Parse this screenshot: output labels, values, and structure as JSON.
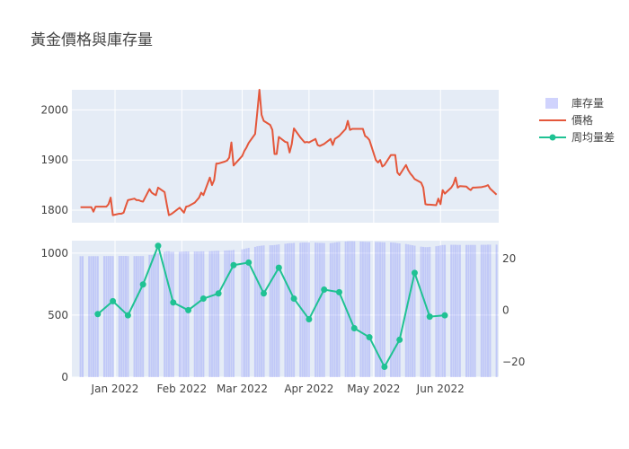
{
  "chart_data": {
    "type": "line",
    "title": "黃金價格與庫存量",
    "legend": {
      "placement": "top-right",
      "entries": [
        {
          "key": "inventory",
          "label": "庫存量"
        },
        {
          "key": "price",
          "label": "價格"
        },
        {
          "key": "diff",
          "label": "周均量差"
        }
      ]
    },
    "colors": {
      "price": "#e4573b",
      "inventory": "#636efa",
      "diff": "#1fc293",
      "panel_bg": "#e5ecf6"
    },
    "grid": true,
    "x_axis": {
      "range": [
        "2021-12-12",
        "2022-06-28"
      ],
      "tick_dates": [
        "2022-01-01",
        "2022-02-01",
        "2022-03-01",
        "2022-04-01",
        "2022-05-01",
        "2022-06-01"
      ],
      "tick_labels": [
        "Jan 2022",
        "Feb 2022",
        "Mar 2022",
        "Apr 2022",
        "May 2022",
        "Jun 2022"
      ]
    },
    "price_axis": {
      "range": [
        1775,
        2040
      ],
      "ticks": [
        1800,
        1900,
        2000
      ]
    },
    "inventory_axis": {
      "range": [
        0,
        1100
      ],
      "ticks": [
        0,
        500,
        1000
      ]
    },
    "diff_axis": {
      "range": [
        -26,
        27
      ],
      "ticks": [
        -20,
        0,
        20
      ],
      "tick_labels": [
        "−20",
        "0",
        "20"
      ]
    },
    "price": {
      "name": "價格",
      "points": [
        [
          "2021-12-16",
          1806
        ],
        [
          "2021-12-17",
          1806
        ],
        [
          "2021-12-20",
          1806
        ],
        [
          "2021-12-21",
          1806
        ],
        [
          "2021-12-22",
          1797
        ],
        [
          "2021-12-23",
          1807
        ],
        [
          "2021-12-24",
          1807
        ],
        [
          "2021-12-27",
          1807
        ],
        [
          "2021-12-28",
          1807
        ],
        [
          "2021-12-29",
          1812
        ],
        [
          "2021-12-30",
          1825
        ],
        [
          "2021-12-31",
          1790
        ],
        [
          "2022-01-03",
          1793
        ],
        [
          "2022-01-04",
          1793
        ],
        [
          "2022-01-05",
          1795
        ],
        [
          "2022-01-06",
          1808
        ],
        [
          "2022-01-07",
          1820
        ],
        [
          "2022-01-10",
          1823
        ],
        [
          "2022-01-11",
          1820
        ],
        [
          "2022-01-12",
          1820
        ],
        [
          "2022-01-13",
          1818
        ],
        [
          "2022-01-14",
          1817
        ],
        [
          "2022-01-17",
          1842
        ],
        [
          "2022-01-18",
          1835
        ],
        [
          "2022-01-19",
          1832
        ],
        [
          "2022-01-20",
          1830
        ],
        [
          "2022-01-21",
          1845
        ],
        [
          "2022-01-24",
          1836
        ],
        [
          "2022-01-25",
          1812
        ],
        [
          "2022-01-26",
          1790
        ],
        [
          "2022-01-27",
          1792
        ],
        [
          "2022-01-28",
          1795
        ],
        [
          "2022-01-31",
          1805
        ],
        [
          "2022-02-01",
          1800
        ],
        [
          "2022-02-02",
          1795
        ],
        [
          "2022-02-03",
          1807
        ],
        [
          "2022-02-04",
          1808
        ],
        [
          "2022-02-07",
          1815
        ],
        [
          "2022-02-08",
          1820
        ],
        [
          "2022-02-09",
          1825
        ],
        [
          "2022-02-10",
          1835
        ],
        [
          "2022-02-11",
          1830
        ],
        [
          "2022-02-14",
          1865
        ],
        [
          "2022-02-15",
          1850
        ],
        [
          "2022-02-16",
          1860
        ],
        [
          "2022-02-17",
          1893
        ],
        [
          "2022-02-18",
          1893
        ],
        [
          "2022-02-21",
          1897
        ],
        [
          "2022-02-22",
          1899
        ],
        [
          "2022-02-23",
          1905
        ],
        [
          "2022-02-24",
          1935
        ],
        [
          "2022-02-25",
          1889
        ],
        [
          "2022-03-01",
          1908
        ],
        [
          "2022-03-02",
          1918
        ],
        [
          "2022-03-03",
          1925
        ],
        [
          "2022-03-04",
          1934
        ],
        [
          "2022-03-07",
          1952
        ],
        [
          "2022-03-08",
          1995
        ],
        [
          "2022-03-09",
          2040
        ],
        [
          "2022-03-10",
          1990
        ],
        [
          "2022-03-11",
          1978
        ],
        [
          "2022-03-14",
          1970
        ],
        [
          "2022-03-15",
          1960
        ],
        [
          "2022-03-16",
          1912
        ],
        [
          "2022-03-17",
          1912
        ],
        [
          "2022-03-18",
          1946
        ],
        [
          "2022-03-21",
          1936
        ],
        [
          "2022-03-22",
          1935
        ],
        [
          "2022-03-23",
          1915
        ],
        [
          "2022-03-24",
          1932
        ],
        [
          "2022-03-25",
          1963
        ],
        [
          "2022-03-28",
          1945
        ],
        [
          "2022-03-29",
          1940
        ],
        [
          "2022-03-30",
          1935
        ],
        [
          "2022-03-31",
          1936
        ],
        [
          "2022-04-01",
          1935
        ],
        [
          "2022-04-04",
          1942
        ],
        [
          "2022-04-05",
          1930
        ],
        [
          "2022-04-06",
          1928
        ],
        [
          "2022-04-07",
          1930
        ],
        [
          "2022-04-08",
          1932
        ],
        [
          "2022-04-11",
          1942
        ],
        [
          "2022-04-12",
          1930
        ],
        [
          "2022-04-13",
          1942
        ],
        [
          "2022-04-14",
          1945
        ],
        [
          "2022-04-15",
          1948
        ],
        [
          "2022-04-18",
          1962
        ],
        [
          "2022-04-19",
          1978
        ],
        [
          "2022-04-20",
          1960
        ],
        [
          "2022-04-21",
          1962
        ],
        [
          "2022-04-22",
          1962
        ],
        [
          "2022-04-25",
          1962
        ],
        [
          "2022-04-26",
          1962
        ],
        [
          "2022-04-27",
          1948
        ],
        [
          "2022-04-28",
          1945
        ],
        [
          "2022-04-29",
          1940
        ],
        [
          "2022-05-02",
          1900
        ],
        [
          "2022-05-03",
          1895
        ],
        [
          "2022-05-04",
          1900
        ],
        [
          "2022-05-05",
          1887
        ],
        [
          "2022-05-06",
          1890
        ],
        [
          "2022-05-09",
          1910
        ],
        [
          "2022-05-10",
          1910
        ],
        [
          "2022-05-11",
          1910
        ],
        [
          "2022-05-12",
          1875
        ],
        [
          "2022-05-13",
          1870
        ],
        [
          "2022-05-16",
          1890
        ],
        [
          "2022-05-17",
          1880
        ],
        [
          "2022-05-18",
          1873
        ],
        [
          "2022-05-19",
          1868
        ],
        [
          "2022-05-20",
          1862
        ],
        [
          "2022-05-23",
          1855
        ],
        [
          "2022-05-24",
          1845
        ],
        [
          "2022-05-25",
          1812
        ],
        [
          "2022-05-26",
          1811
        ],
        [
          "2022-05-27",
          1811
        ],
        [
          "2022-05-30",
          1810
        ],
        [
          "2022-05-31",
          1823
        ],
        [
          "2022-06-01",
          1812
        ],
        [
          "2022-06-02",
          1840
        ],
        [
          "2022-06-03",
          1833
        ],
        [
          "2022-06-06",
          1845
        ],
        [
          "2022-06-07",
          1852
        ],
        [
          "2022-06-08",
          1865
        ],
        [
          "2022-06-09",
          1845
        ],
        [
          "2022-06-10",
          1848
        ],
        [
          "2022-06-13",
          1847
        ],
        [
          "2022-06-14",
          1843
        ],
        [
          "2022-06-15",
          1840
        ],
        [
          "2022-06-16",
          1845
        ],
        [
          "2022-06-17",
          1845
        ],
        [
          "2022-06-20",
          1846
        ],
        [
          "2022-06-21",
          1847
        ],
        [
          "2022-06-22",
          1848
        ],
        [
          "2022-06-23",
          1850
        ],
        [
          "2022-06-24",
          1843
        ],
        [
          "2022-06-27",
          1831
        ]
      ]
    },
    "inventory": {
      "name": "庫存量",
      "points": [
        [
          "2021-12-16",
          975
        ],
        [
          "2021-12-17",
          975
        ],
        [
          "2021-12-20",
          975
        ],
        [
          "2021-12-21",
          975
        ],
        [
          "2021-12-22",
          975
        ],
        [
          "2021-12-23",
          975
        ],
        [
          "2021-12-24",
          975
        ],
        [
          "2021-12-27",
          976
        ],
        [
          "2021-12-28",
          976
        ],
        [
          "2021-12-29",
          976
        ],
        [
          "2021-12-30",
          976
        ],
        [
          "2021-12-31",
          976
        ],
        [
          "2022-01-03",
          977
        ],
        [
          "2022-01-04",
          977
        ],
        [
          "2022-01-05",
          977
        ],
        [
          "2022-01-06",
          977
        ],
        [
          "2022-01-07",
          976
        ],
        [
          "2022-01-10",
          976
        ],
        [
          "2022-01-11",
          976
        ],
        [
          "2022-01-12",
          976
        ],
        [
          "2022-01-13",
          976
        ],
        [
          "2022-01-14",
          976
        ],
        [
          "2022-01-17",
          985
        ],
        [
          "2022-01-18",
          985
        ],
        [
          "2022-01-19",
          990
        ],
        [
          "2022-01-20",
          995
        ],
        [
          "2022-01-21",
          1000
        ],
        [
          "2022-01-24",
          1010
        ],
        [
          "2022-01-25",
          1015
        ],
        [
          "2022-01-26",
          1015
        ],
        [
          "2022-01-27",
          1010
        ],
        [
          "2022-01-28",
          1010
        ],
        [
          "2022-01-31",
          1010
        ],
        [
          "2022-02-01",
          1012
        ],
        [
          "2022-02-02",
          1012
        ],
        [
          "2022-02-03",
          1013
        ],
        [
          "2022-02-04",
          1013
        ],
        [
          "2022-02-07",
          1013
        ],
        [
          "2022-02-08",
          1013
        ],
        [
          "2022-02-09",
          1013
        ],
        [
          "2022-02-10",
          1014
        ],
        [
          "2022-02-11",
          1014
        ],
        [
          "2022-02-14",
          1015
        ],
        [
          "2022-02-15",
          1016
        ],
        [
          "2022-02-16",
          1017
        ],
        [
          "2022-02-17",
          1018
        ],
        [
          "2022-02-18",
          1018
        ],
        [
          "2022-02-21",
          1020
        ],
        [
          "2022-02-22",
          1021
        ],
        [
          "2022-02-23",
          1022
        ],
        [
          "2022-02-24",
          1022
        ],
        [
          "2022-02-25",
          1025
        ],
        [
          "2022-03-01",
          1030
        ],
        [
          "2022-03-02",
          1033
        ],
        [
          "2022-03-03",
          1038
        ],
        [
          "2022-03-04",
          1042
        ],
        [
          "2022-03-07",
          1050
        ],
        [
          "2022-03-08",
          1055
        ],
        [
          "2022-03-09",
          1058
        ],
        [
          "2022-03-10",
          1060
        ],
        [
          "2022-03-11",
          1062
        ],
        [
          "2022-03-14",
          1063
        ],
        [
          "2022-03-15",
          1063
        ],
        [
          "2022-03-16",
          1065
        ],
        [
          "2022-03-17",
          1067
        ],
        [
          "2022-03-18",
          1070
        ],
        [
          "2022-03-21",
          1075
        ],
        [
          "2022-03-22",
          1078
        ],
        [
          "2022-03-23",
          1080
        ],
        [
          "2022-03-24",
          1080
        ],
        [
          "2022-03-25",
          1082
        ],
        [
          "2022-03-28",
          1083
        ],
        [
          "2022-03-29",
          1085
        ],
        [
          "2022-03-30",
          1085
        ],
        [
          "2022-03-31",
          1085
        ],
        [
          "2022-04-01",
          1085
        ],
        [
          "2022-04-04",
          1084
        ],
        [
          "2022-04-05",
          1083
        ],
        [
          "2022-04-06",
          1082
        ],
        [
          "2022-04-07",
          1082
        ],
        [
          "2022-04-08",
          1081
        ],
        [
          "2022-04-11",
          1080
        ],
        [
          "2022-04-12",
          1082
        ],
        [
          "2022-04-13",
          1085
        ],
        [
          "2022-04-14",
          1088
        ],
        [
          "2022-04-15",
          1090
        ],
        [
          "2022-04-18",
          1093
        ],
        [
          "2022-04-19",
          1095
        ],
        [
          "2022-04-20",
          1096
        ],
        [
          "2022-04-21",
          1096
        ],
        [
          "2022-04-22",
          1095
        ],
        [
          "2022-04-25",
          1093
        ],
        [
          "2022-04-26",
          1092
        ],
        [
          "2022-04-27",
          1091
        ],
        [
          "2022-04-28",
          1090
        ],
        [
          "2022-04-29",
          1090
        ],
        [
          "2022-05-02",
          1090
        ],
        [
          "2022-05-03",
          1090
        ],
        [
          "2022-05-04",
          1089
        ],
        [
          "2022-05-05",
          1088
        ],
        [
          "2022-05-06",
          1087
        ],
        [
          "2022-05-09",
          1086
        ],
        [
          "2022-05-10",
          1085
        ],
        [
          "2022-05-11",
          1083
        ],
        [
          "2022-05-12",
          1080
        ],
        [
          "2022-05-13",
          1078
        ],
        [
          "2022-05-16",
          1073
        ],
        [
          "2022-05-17",
          1070
        ],
        [
          "2022-05-18",
          1066
        ],
        [
          "2022-05-19",
          1063
        ],
        [
          "2022-05-20",
          1060
        ],
        [
          "2022-05-23",
          1052
        ],
        [
          "2022-05-24",
          1050
        ],
        [
          "2022-05-25",
          1048
        ],
        [
          "2022-05-26",
          1048
        ],
        [
          "2022-05-27",
          1050
        ],
        [
          "2022-05-30",
          1055
        ],
        [
          "2022-05-31",
          1058
        ],
        [
          "2022-06-01",
          1062
        ],
        [
          "2022-06-02",
          1065
        ],
        [
          "2022-06-03",
          1066
        ],
        [
          "2022-06-06",
          1067
        ],
        [
          "2022-06-07",
          1067
        ],
        [
          "2022-06-08",
          1067
        ],
        [
          "2022-06-09",
          1066
        ],
        [
          "2022-06-10",
          1066
        ],
        [
          "2022-06-13",
          1066
        ],
        [
          "2022-06-14",
          1066
        ],
        [
          "2022-06-15",
          1066
        ],
        [
          "2022-06-16",
          1066
        ],
        [
          "2022-06-17",
          1066
        ],
        [
          "2022-06-20",
          1067
        ],
        [
          "2022-06-21",
          1067
        ],
        [
          "2022-06-22",
          1067
        ],
        [
          "2022-06-23",
          1068
        ],
        [
          "2022-06-24",
          1068
        ],
        [
          "2022-06-27",
          1068
        ]
      ]
    },
    "diff": {
      "name": "周均量差",
      "points": [
        [
          "2021-12-24",
          -1.5
        ],
        [
          "2021-12-31",
          3.5
        ],
        [
          "2022-01-07",
          -2.0
        ],
        [
          "2022-01-14",
          10.0
        ],
        [
          "2022-01-21",
          25.0
        ],
        [
          "2022-01-28",
          3.0
        ],
        [
          "2022-02-04",
          0.0
        ],
        [
          "2022-02-11",
          4.5
        ],
        [
          "2022-02-18",
          6.5
        ],
        [
          "2022-02-25",
          17.5
        ],
        [
          "2022-03-04",
          18.5
        ],
        [
          "2022-03-11",
          6.5
        ],
        [
          "2022-03-18",
          16.5
        ],
        [
          "2022-03-25",
          4.5
        ],
        [
          "2022-04-01",
          -3.5
        ],
        [
          "2022-04-08",
          8.0
        ],
        [
          "2022-04-15",
          7.0
        ],
        [
          "2022-04-22",
          -7.0
        ],
        [
          "2022-04-29",
          -10.5
        ],
        [
          "2022-05-06",
          -22.0
        ],
        [
          "2022-05-13",
          -11.5
        ],
        [
          "2022-05-20",
          14.5
        ],
        [
          "2022-05-27",
          -2.5
        ],
        [
          "2022-06-03",
          -2.0
        ]
      ]
    }
  }
}
